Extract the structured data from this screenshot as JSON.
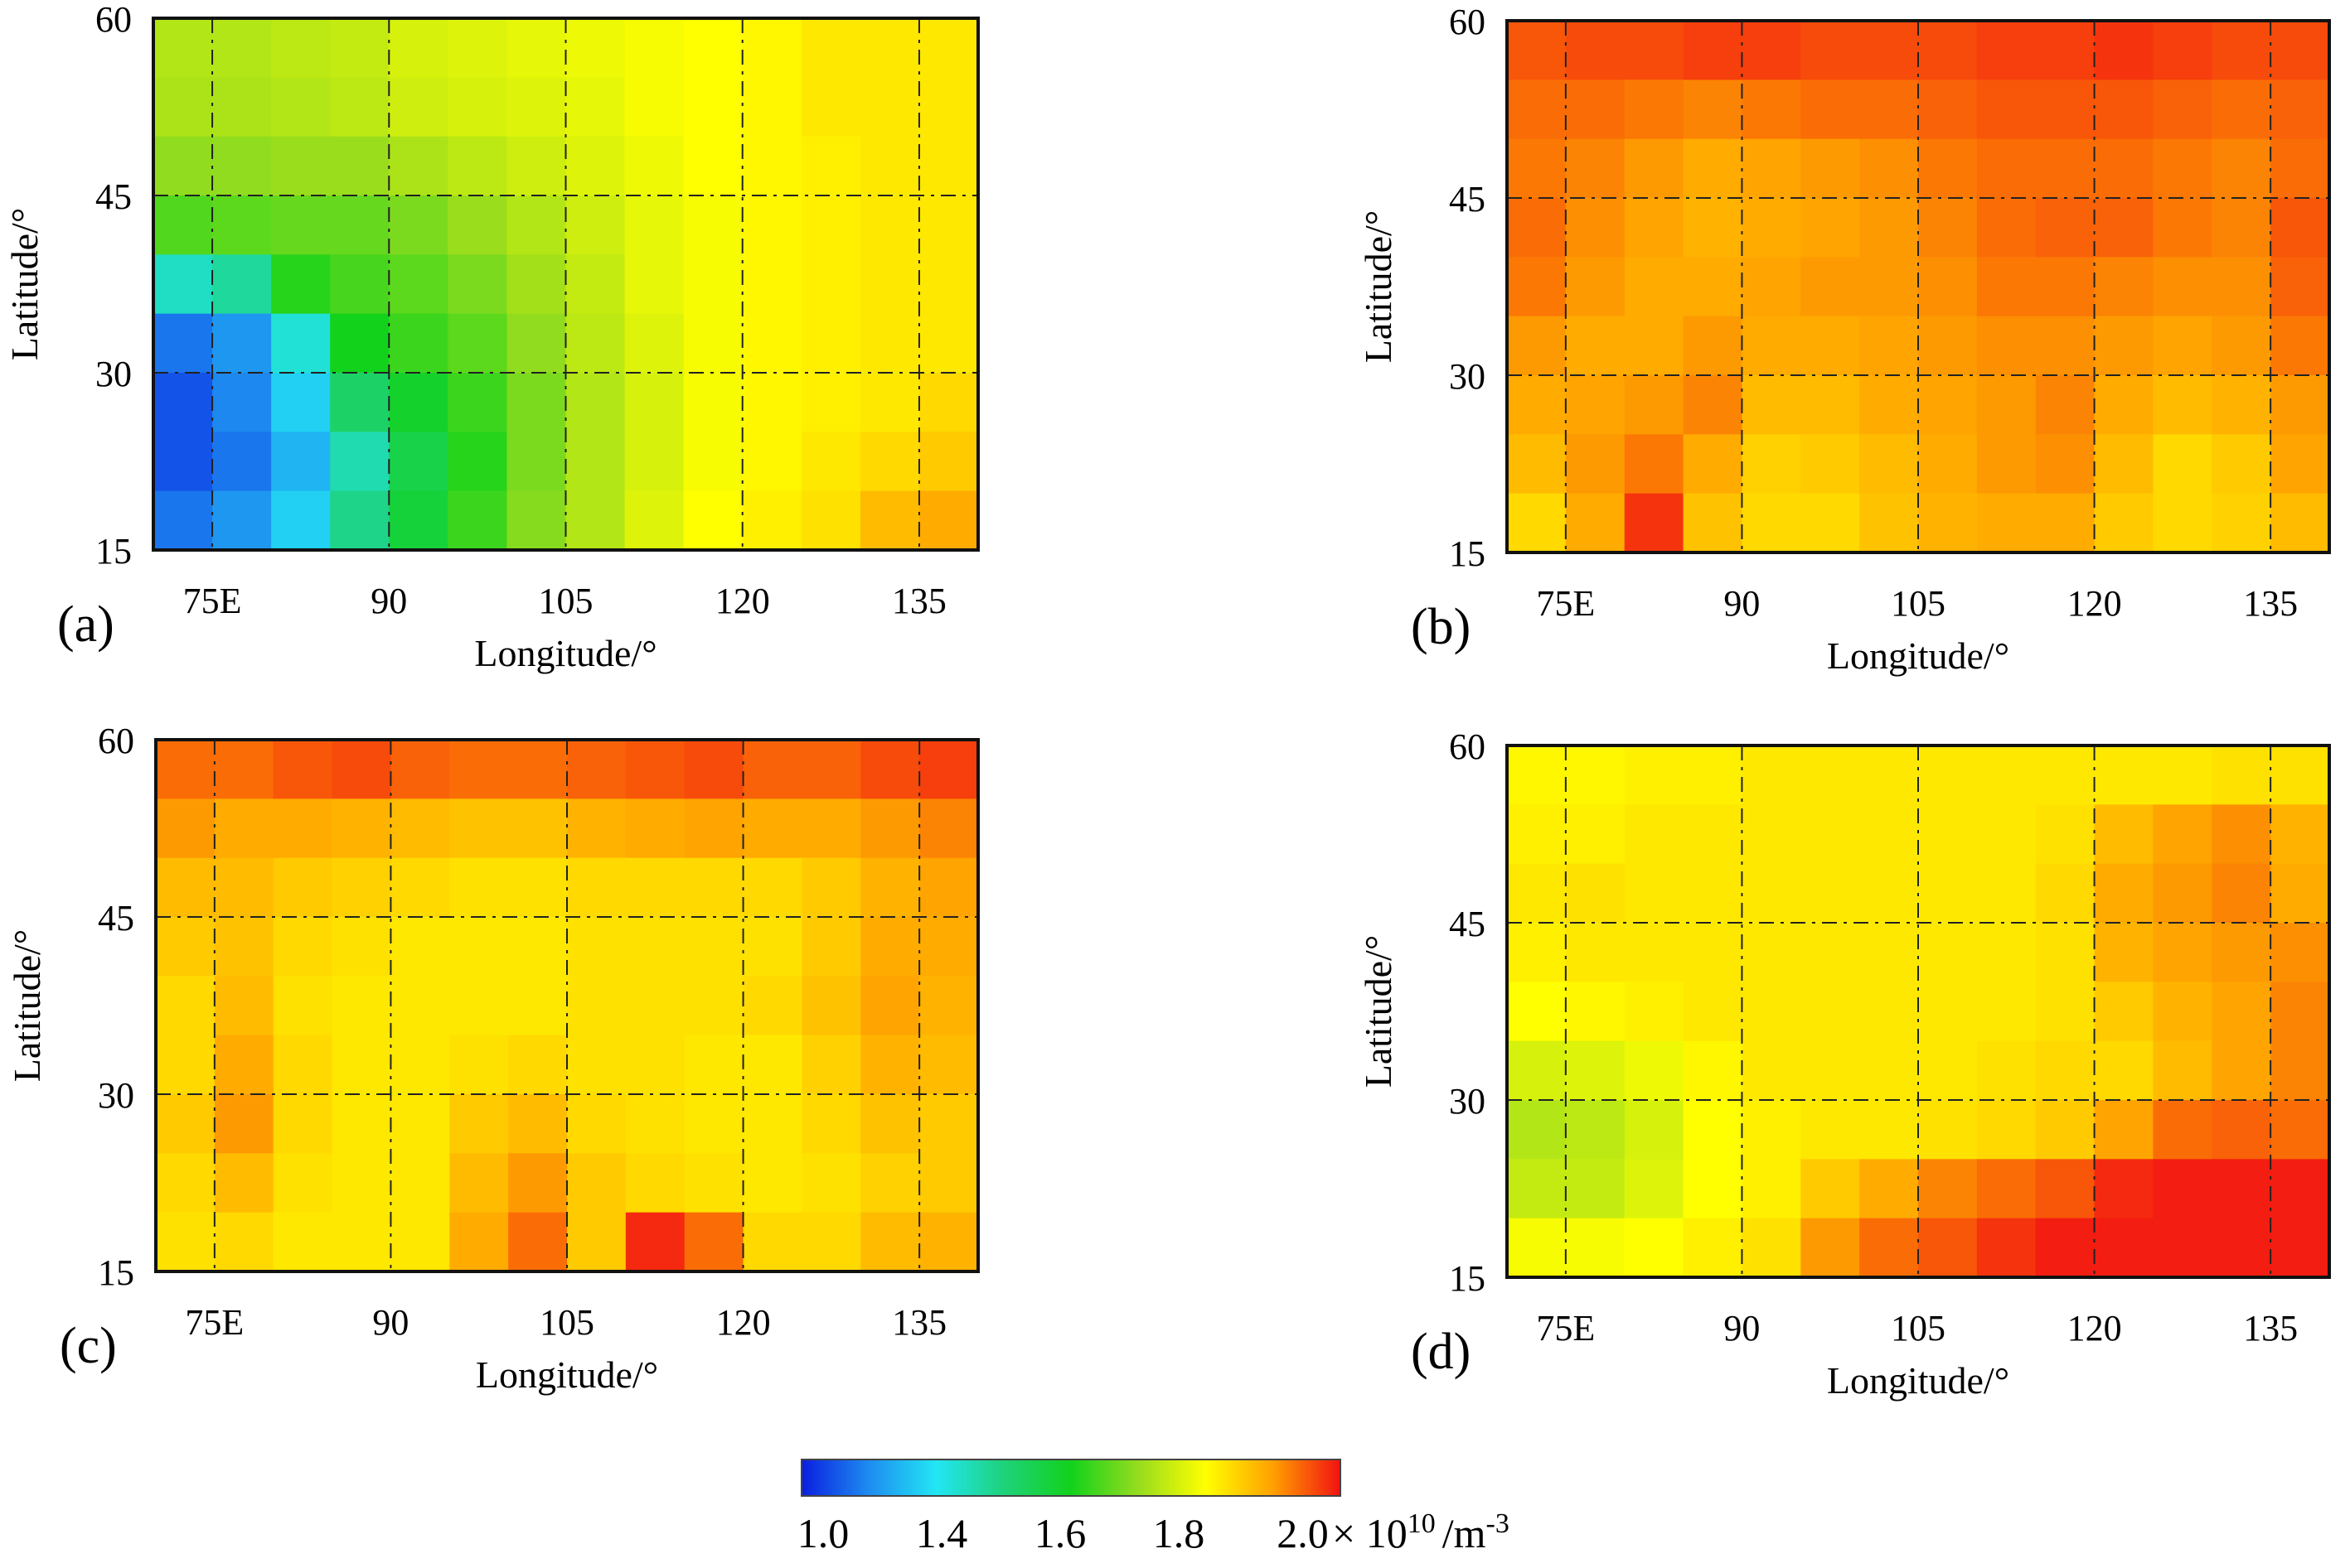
{
  "chart_data": {
    "type": "heatmap",
    "title": "",
    "colorbar": {
      "ticks": [
        "1.0",
        "1.4",
        "1.6",
        "1.8",
        "2.0"
      ],
      "unit": "× 10",
      "unit_exponent": "10",
      "unit_suffix": "/m",
      "unit_suffix_exponent": "-3",
      "range": [
        1.0,
        2.0
      ],
      "colors": [
        "#0a1ee0",
        "#1e8cf0",
        "#22e6f4",
        "#1ed27a",
        "#12d21c",
        "#96dc1e",
        "#ffff00",
        "#ffa000",
        "#f21212"
      ]
    },
    "panels": [
      {
        "label": "(a)",
        "xlabel": "Longitude/°",
        "ylabel": "Latitude/°",
        "xticks": [
          "75E",
          "90",
          "105",
          "120",
          "135"
        ],
        "yticks": [
          "60",
          "45",
          "30",
          "15"
        ],
        "xlim": [
          70,
          140
        ],
        "ylim": [
          15,
          60
        ],
        "grid_step_deg": 5,
        "values": [
          [
            1.66,
            1.66,
            1.67,
            1.68,
            1.7,
            1.71,
            1.72,
            1.73,
            1.74,
            1.75,
            1.76,
            1.78,
            1.78,
            1.78
          ],
          [
            1.65,
            1.65,
            1.66,
            1.67,
            1.69,
            1.7,
            1.71,
            1.72,
            1.74,
            1.75,
            1.76,
            1.78,
            1.78,
            1.78
          ],
          [
            1.62,
            1.62,
            1.63,
            1.63,
            1.65,
            1.67,
            1.69,
            1.71,
            1.73,
            1.75,
            1.76,
            1.77,
            1.78,
            1.78
          ],
          [
            1.56,
            1.57,
            1.58,
            1.58,
            1.6,
            1.63,
            1.66,
            1.69,
            1.72,
            1.74,
            1.76,
            1.77,
            1.78,
            1.78
          ],
          [
            1.3,
            1.34,
            1.52,
            1.55,
            1.57,
            1.6,
            1.64,
            1.68,
            1.72,
            1.74,
            1.76,
            1.77,
            1.78,
            1.78
          ],
          [
            1.1,
            1.14,
            1.28,
            1.5,
            1.54,
            1.57,
            1.62,
            1.67,
            1.71,
            1.74,
            1.76,
            1.77,
            1.78,
            1.78
          ],
          [
            1.06,
            1.12,
            1.22,
            1.4,
            1.48,
            1.54,
            1.6,
            1.66,
            1.7,
            1.74,
            1.76,
            1.77,
            1.78,
            1.8
          ],
          [
            1.06,
            1.1,
            1.18,
            1.32,
            1.44,
            1.52,
            1.6,
            1.66,
            1.7,
            1.74,
            1.76,
            1.78,
            1.8,
            1.82
          ],
          [
            1.1,
            1.14,
            1.22,
            1.36,
            1.46,
            1.54,
            1.61,
            1.66,
            1.71,
            1.75,
            1.77,
            1.79,
            1.84,
            1.86
          ]
        ]
      },
      {
        "label": "(b)",
        "xlabel": "Longitude/°",
        "ylabel": "Latitude/°",
        "xticks": [
          "75E",
          "90",
          "105",
          "120",
          "135"
        ],
        "yticks": [
          "60",
          "45",
          "30",
          "15"
        ],
        "xlim": [
          70,
          140
        ],
        "ylim": [
          15,
          60
        ],
        "grid_step_deg": 5,
        "values": [
          [
            1.94,
            1.95,
            1.95,
            1.96,
            1.96,
            1.95,
            1.95,
            1.95,
            1.96,
            1.96,
            1.97,
            1.96,
            1.95,
            1.95
          ],
          [
            1.92,
            1.92,
            1.91,
            1.9,
            1.91,
            1.92,
            1.92,
            1.93,
            1.94,
            1.94,
            1.94,
            1.93,
            1.92,
            1.93
          ],
          [
            1.91,
            1.9,
            1.88,
            1.86,
            1.87,
            1.88,
            1.89,
            1.91,
            1.92,
            1.92,
            1.92,
            1.91,
            1.9,
            1.92
          ],
          [
            1.92,
            1.89,
            1.87,
            1.85,
            1.86,
            1.87,
            1.88,
            1.9,
            1.92,
            1.93,
            1.93,
            1.91,
            1.9,
            1.94
          ],
          [
            1.91,
            1.88,
            1.86,
            1.86,
            1.87,
            1.88,
            1.88,
            1.89,
            1.91,
            1.91,
            1.9,
            1.89,
            1.89,
            1.93
          ],
          [
            1.88,
            1.86,
            1.86,
            1.88,
            1.86,
            1.86,
            1.87,
            1.88,
            1.89,
            1.89,
            1.88,
            1.87,
            1.88,
            1.91
          ],
          [
            1.86,
            1.87,
            1.88,
            1.9,
            1.84,
            1.84,
            1.86,
            1.87,
            1.88,
            1.9,
            1.86,
            1.84,
            1.85,
            1.88
          ],
          [
            1.84,
            1.88,
            1.91,
            1.86,
            1.81,
            1.82,
            1.84,
            1.86,
            1.88,
            1.89,
            1.84,
            1.8,
            1.82,
            1.87
          ],
          [
            1.8,
            1.86,
            1.97,
            1.83,
            1.8,
            1.8,
            1.83,
            1.85,
            1.86,
            1.86,
            1.82,
            1.8,
            1.81,
            1.84
          ]
        ]
      },
      {
        "label": "(c)",
        "xlabel": "Longitude/°",
        "ylabel": "Latitude/°",
        "xticks": [
          "75E",
          "90",
          "105",
          "120",
          "135"
        ],
        "yticks": [
          "60",
          "45",
          "30",
          "15"
        ],
        "xlim": [
          70,
          140
        ],
        "ylim": [
          15,
          60
        ],
        "grid_step_deg": 5,
        "values": [
          [
            1.92,
            1.92,
            1.94,
            1.95,
            1.93,
            1.92,
            1.92,
            1.93,
            1.94,
            1.95,
            1.93,
            1.93,
            1.95,
            1.96
          ],
          [
            1.88,
            1.86,
            1.86,
            1.85,
            1.84,
            1.83,
            1.83,
            1.85,
            1.86,
            1.87,
            1.86,
            1.86,
            1.88,
            1.9
          ],
          [
            1.84,
            1.84,
            1.82,
            1.81,
            1.8,
            1.79,
            1.79,
            1.8,
            1.8,
            1.8,
            1.8,
            1.82,
            1.85,
            1.87
          ],
          [
            1.82,
            1.83,
            1.8,
            1.79,
            1.78,
            1.78,
            1.78,
            1.79,
            1.79,
            1.79,
            1.79,
            1.82,
            1.86,
            1.86
          ],
          [
            1.8,
            1.84,
            1.79,
            1.78,
            1.78,
            1.78,
            1.78,
            1.79,
            1.79,
            1.79,
            1.8,
            1.83,
            1.87,
            1.85
          ],
          [
            1.8,
            1.86,
            1.8,
            1.78,
            1.78,
            1.79,
            1.8,
            1.79,
            1.79,
            1.78,
            1.78,
            1.81,
            1.85,
            1.84
          ],
          [
            1.82,
            1.88,
            1.8,
            1.78,
            1.78,
            1.82,
            1.84,
            1.8,
            1.79,
            1.78,
            1.78,
            1.8,
            1.83,
            1.82
          ],
          [
            1.8,
            1.84,
            1.79,
            1.78,
            1.78,
            1.84,
            1.88,
            1.82,
            1.8,
            1.79,
            1.78,
            1.79,
            1.81,
            1.82
          ],
          [
            1.79,
            1.8,
            1.78,
            1.78,
            1.78,
            1.86,
            1.92,
            1.82,
            1.98,
            1.92,
            1.8,
            1.8,
            1.84,
            1.85
          ]
        ]
      },
      {
        "label": "(d)",
        "xlabel": "Longitude/°",
        "ylabel": "Latitude/°",
        "xticks": [
          "75E",
          "90",
          "105",
          "120",
          "135"
        ],
        "yticks": [
          "60",
          "45",
          "30",
          "15"
        ],
        "xlim": [
          70,
          140
        ],
        "ylim": [
          15,
          60
        ],
        "grid_step_deg": 5,
        "values": [
          [
            1.76,
            1.76,
            1.77,
            1.77,
            1.78,
            1.78,
            1.78,
            1.78,
            1.78,
            1.78,
            1.78,
            1.78,
            1.79,
            1.79
          ],
          [
            1.77,
            1.77,
            1.78,
            1.78,
            1.78,
            1.78,
            1.78,
            1.78,
            1.78,
            1.79,
            1.84,
            1.87,
            1.89,
            1.85
          ],
          [
            1.78,
            1.79,
            1.78,
            1.78,
            1.78,
            1.78,
            1.78,
            1.78,
            1.78,
            1.8,
            1.86,
            1.88,
            1.9,
            1.86
          ],
          [
            1.77,
            1.78,
            1.78,
            1.78,
            1.78,
            1.78,
            1.78,
            1.78,
            1.78,
            1.79,
            1.85,
            1.87,
            1.88,
            1.89
          ],
          [
            1.75,
            1.76,
            1.77,
            1.78,
            1.78,
            1.78,
            1.78,
            1.78,
            1.78,
            1.79,
            1.82,
            1.85,
            1.87,
            1.9
          ],
          [
            1.7,
            1.71,
            1.73,
            1.76,
            1.78,
            1.78,
            1.78,
            1.78,
            1.79,
            1.8,
            1.8,
            1.84,
            1.87,
            1.9
          ],
          [
            1.66,
            1.67,
            1.7,
            1.75,
            1.77,
            1.78,
            1.78,
            1.79,
            1.8,
            1.82,
            1.87,
            1.92,
            1.93,
            1.92
          ],
          [
            1.68,
            1.68,
            1.71,
            1.75,
            1.77,
            1.82,
            1.86,
            1.9,
            1.92,
            1.94,
            1.98,
            1.99,
            1.99,
            1.99
          ],
          [
            1.74,
            1.74,
            1.75,
            1.77,
            1.79,
            1.88,
            1.92,
            1.94,
            1.97,
            1.99,
            1.99,
            1.99,
            1.99,
            1.99
          ]
        ]
      }
    ]
  }
}
